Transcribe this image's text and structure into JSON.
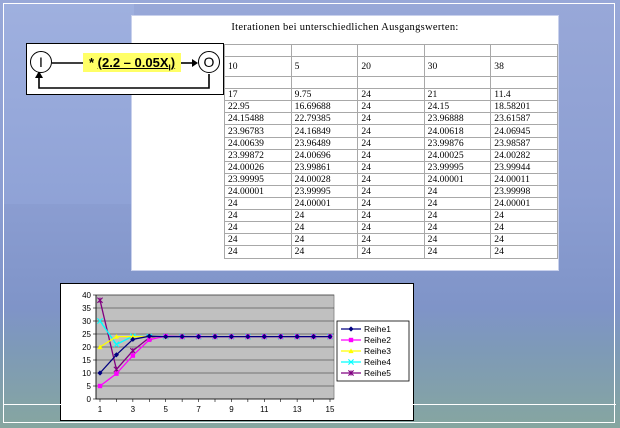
{
  "table": {
    "title": "Iterationen bei unterschiedlichen Ausgangswerten:",
    "header": [
      "10",
      "5",
      "20",
      "30",
      "38"
    ],
    "rows": [
      [
        "17",
        "9.75",
        "24",
        "21",
        "11.4"
      ],
      [
        "22.95",
        "16.69688",
        "24",
        "24.15",
        "18.58201"
      ],
      [
        "24.15488",
        "22.79385",
        "24",
        "23.96888",
        "23.61587"
      ],
      [
        "23.96783",
        "24.16849",
        "24",
        "24.00618",
        "24.06945"
      ],
      [
        "24.00639",
        "23.96489",
        "24",
        "23.99876",
        "23.98587"
      ],
      [
        "23.99872",
        "24.00696",
        "24",
        "24.00025",
        "24.00282"
      ],
      [
        "24.00026",
        "23.99861",
        "24",
        "23.99995",
        "23.99944"
      ],
      [
        "23.99995",
        "24.00028",
        "24",
        "24.00001",
        "24.00011"
      ],
      [
        "24.00001",
        "23.99995",
        "24",
        "24",
        "23.99998"
      ],
      [
        "24",
        "24.00001",
        "24",
        "24",
        "24.00001"
      ],
      [
        "24",
        "24",
        "24",
        "24",
        "24"
      ],
      [
        "24",
        "24",
        "24",
        "24",
        "24"
      ],
      [
        "24",
        "24",
        "24",
        "24",
        "24"
      ],
      [
        "24",
        "24",
        "24",
        "24",
        "24"
      ]
    ]
  },
  "formula": {
    "input_label": "I",
    "output_label": "O",
    "operator": "* ",
    "expression_main": "(2.2 – 0.05X",
    "expression_sub": "I",
    "expression_close": ")"
  },
  "chart_data": {
    "type": "line",
    "x": [
      1,
      2,
      3,
      4,
      5,
      6,
      7,
      8,
      9,
      10,
      11,
      12,
      13,
      14,
      15
    ],
    "x_tick_labels": [
      "1",
      "3",
      "5",
      "7",
      "9",
      "11",
      "13",
      "15"
    ],
    "ylim": [
      0,
      40
    ],
    "y_ticks": [
      0,
      5,
      10,
      15,
      20,
      25,
      30,
      35,
      40
    ],
    "grid": true,
    "legend_position": "right",
    "series": [
      {
        "name": "Reihe1",
        "color": "#000080",
        "marker": "diamond",
        "values": [
          10,
          17,
          22.95,
          24.15488,
          23.96783,
          24.00639,
          23.99872,
          24.00026,
          23.99995,
          24.00001,
          24,
          24,
          24,
          24,
          24
        ]
      },
      {
        "name": "Reihe2",
        "color": "#ff00ff",
        "marker": "square",
        "values": [
          5,
          9.75,
          16.69688,
          22.79385,
          24.16849,
          23.96489,
          24.00696,
          23.99861,
          24.00028,
          23.99995,
          24.00001,
          24,
          24,
          24,
          24
        ]
      },
      {
        "name": "Reihe3",
        "color": "#ffff00",
        "marker": "triangle",
        "values": [
          20,
          24,
          24,
          24,
          24,
          24,
          24,
          24,
          24,
          24,
          24,
          24,
          24,
          24,
          24
        ]
      },
      {
        "name": "Reihe4",
        "color": "#00ffff",
        "marker": "x",
        "values": [
          30,
          21,
          24.15,
          23.96888,
          24.00618,
          23.99876,
          24.00025,
          23.99995,
          24.00001,
          24,
          24,
          24,
          24,
          24,
          24
        ]
      },
      {
        "name": "Reihe5",
        "color": "#800080",
        "marker": "star",
        "values": [
          38,
          11.4,
          18.58201,
          23.61587,
          24.06945,
          23.98587,
          24.00282,
          23.99944,
          24.00011,
          23.99998,
          24.00001,
          24,
          24,
          24,
          24
        ]
      }
    ]
  }
}
